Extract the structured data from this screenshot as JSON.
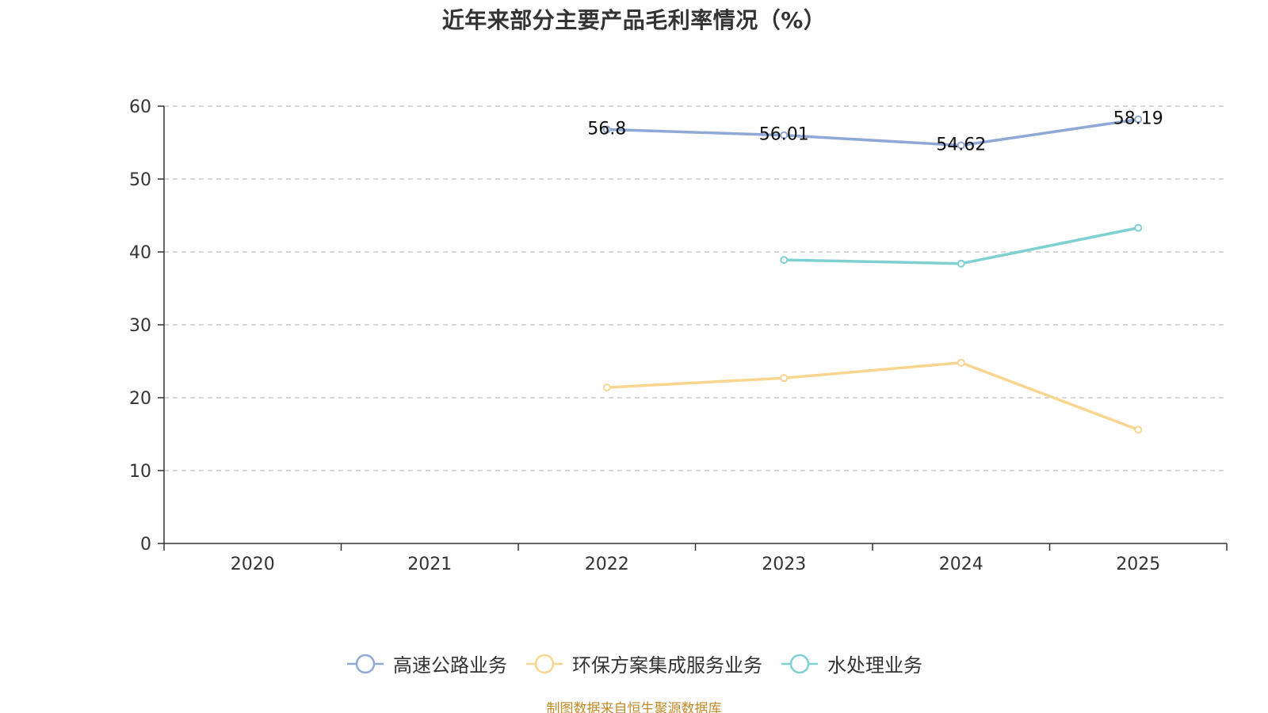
{
  "chart_data": {
    "type": "line",
    "title": "近年来部分主要产品毛利率情况（%）",
    "categories": [
      "2020",
      "2021",
      "2022",
      "2023",
      "2024",
      "2025"
    ],
    "ylim": [
      0,
      60
    ],
    "yticks": [
      0,
      10,
      20,
      30,
      40,
      50,
      60
    ],
    "grid": true,
    "legend_position": "bottom",
    "series": [
      {
        "name": "高速公路业务",
        "color": "#8fa9d6",
        "values": [
          null,
          null,
          56.8,
          56.01,
          54.62,
          58.19
        ],
        "labels": [
          "",
          "",
          "56.8",
          "56.01",
          "54.62",
          "58.19"
        ]
      },
      {
        "name": "环保方案集成服务业务",
        "color": "#f8d68f",
        "values": [
          null,
          null,
          21.4,
          22.7,
          24.8,
          15.6
        ],
        "labels": [
          "",
          "",
          "",
          "",
          "",
          ""
        ]
      },
      {
        "name": "水处理业务",
        "color": "#7fd0d3",
        "values": [
          null,
          null,
          null,
          38.9,
          38.4,
          43.3
        ],
        "labels": [
          "",
          "",
          "",
          "",
          "",
          ""
        ]
      }
    ]
  },
  "footer": {
    "source": "制图数据来自恒生聚源数据库"
  }
}
